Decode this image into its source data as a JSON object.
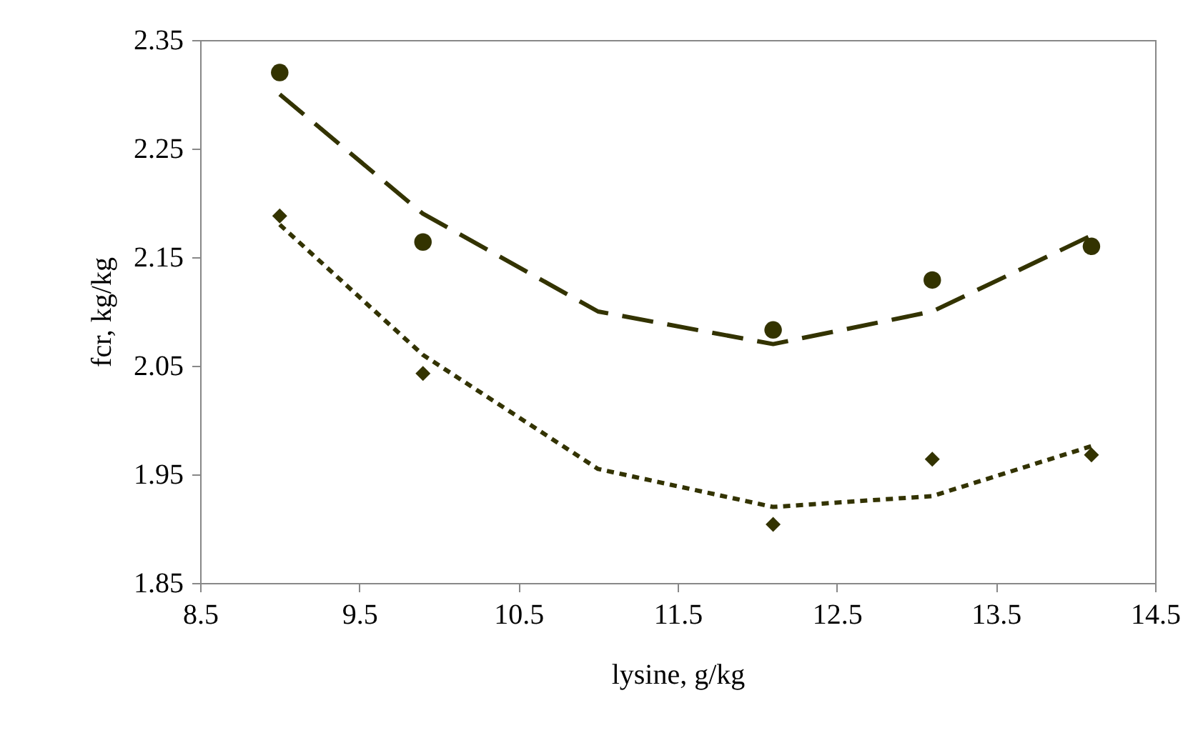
{
  "chart_data": {
    "type": "scatter",
    "xlabel": "lysine, g/kg",
    "ylabel": "fcr, kg/kg",
    "xlim": [
      8.5,
      14.5
    ],
    "xticks": [
      8.5,
      9.5,
      10.5,
      11.5,
      12.5,
      13.5,
      14.5
    ],
    "ylim": [
      1.85,
      2.35
    ],
    "yticks": [
      1.85,
      1.95,
      2.05,
      2.15,
      2.25,
      2.35
    ],
    "grid": false,
    "legend": false,
    "series": [
      {
        "type": "line",
        "line_style": "dashed",
        "marker": "none",
        "color": "#333300",
        "x": [
          9.0,
          9.9,
          11.0,
          12.1,
          13.1,
          14.1
        ],
        "values": [
          2.3,
          2.19,
          2.1,
          2.07,
          2.1,
          2.17
        ]
      },
      {
        "type": "line",
        "line_style": "dotted",
        "marker": "none",
        "color": "#333300",
        "x": [
          9.0,
          9.9,
          11.0,
          12.1,
          13.1,
          14.1
        ],
        "values": [
          2.18,
          2.06,
          1.955,
          1.92,
          1.93,
          1.976
        ]
      },
      {
        "marker": "circle",
        "color": "#333300",
        "x": [
          9.0,
          9.9,
          12.1,
          13.1,
          14.1
        ],
        "values": [
          2.32,
          2.164,
          2.083,
          2.129,
          2.16
        ]
      },
      {
        "marker": "diamond",
        "color": "#333300",
        "x": [
          9.0,
          9.9,
          12.1,
          13.1,
          14.1
        ],
        "values": [
          2.188,
          2.043,
          1.904,
          1.964,
          1.968
        ]
      }
    ]
  }
}
